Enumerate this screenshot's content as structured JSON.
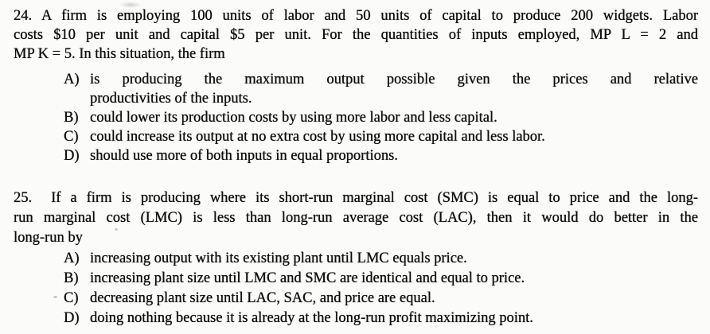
{
  "page": {
    "background_color": "#fbfbf9",
    "ink_color": "#0e0e0e"
  },
  "questions": [
    {
      "number": "24",
      "stem_lines": [
        "24. A firm is employing 100 units of labor and 50 units of capital to produce 200 widgets. Labor",
        "costs $10 per unit and capital $5 per unit. For the quantities of inputs employed, MP L = 2 and",
        "MP K = 5. In this situation, the firm"
      ],
      "options": [
        {
          "label": "A)",
          "lines": [
            "is producing the maximum output possible given the prices and relative",
            "productivities of the inputs."
          ]
        },
        {
          "label": "B)",
          "lines": [
            "could lower its production costs by using more labor and less capital."
          ]
        },
        {
          "label": "C)",
          "lines": [
            "could increase its output at no extra cost by using more capital and less labor."
          ]
        },
        {
          "label": "D)",
          "lines": [
            "should use more of both inputs in equal proportions."
          ]
        }
      ]
    },
    {
      "number": "25",
      "stem_lines": [
        "25.  If a firm is producing where its short-run marginal cost (SMC) is equal to price and the long-",
        "run marginal cost (LMC) is less than long-run average cost (LAC), then it would do better in the",
        "long-run by"
      ],
      "options": [
        {
          "label": "A)",
          "lines": [
            "increasing output with its existing plant until LMC equals price."
          ]
        },
        {
          "label": "B)",
          "lines": [
            "increasing plant size until LMC and SMC are identical and equal to price."
          ]
        },
        {
          "label": "C)",
          "lines": [
            "decreasing plant size until LAC, SAC, and price are equal."
          ]
        },
        {
          "label": "D)",
          "lines": [
            "doing nothing because it is already at the long-run profit maximizing point."
          ]
        }
      ]
    }
  ]
}
